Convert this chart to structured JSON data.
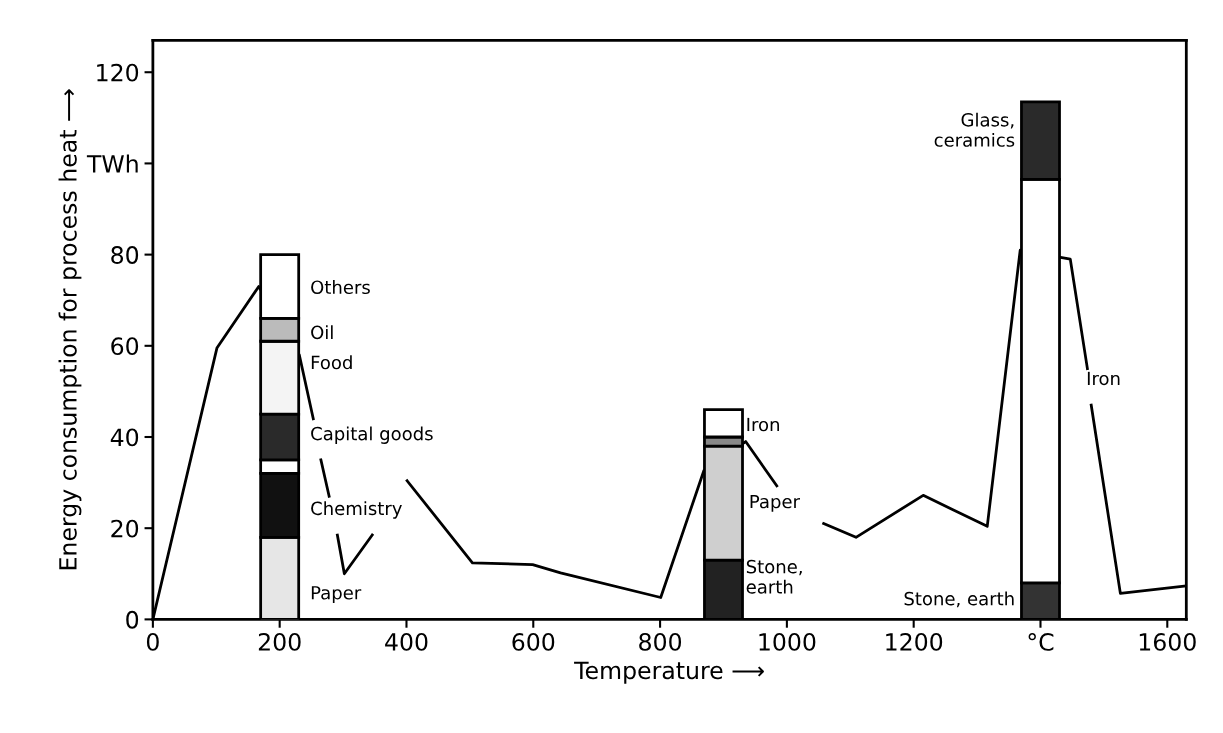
{
  "chart_data": {
    "type": "bar",
    "stacked": true,
    "xlabel": "Temperature ⟶",
    "ylabel": "Energy consumption for process heat ⟶",
    "x": [
      200,
      900,
      1400
    ],
    "series": [
      {
        "colors": [
          "#e6e6e6",
          "#222222",
          "#333333"
        ],
        "values": [
          18,
          13,
          8
        ]
      },
      {
        "colors": [
          "#111111",
          "#cfcfcf",
          "#ffffff"
        ],
        "values": [
          14,
          25,
          88.5
        ]
      },
      {
        "colors": [
          "#ffffff",
          "#888888",
          "#2a2a2a"
        ],
        "values": [
          3,
          2,
          17
        ]
      },
      {
        "colors": [
          "#2a2a2a",
          "#ffffff",
          "#ffffff"
        ],
        "values": [
          10,
          6,
          null
        ]
      },
      {
        "colors": [
          "#f4f4f4",
          "#ffffff",
          "#ffffff"
        ],
        "values": [
          16,
          null,
          null
        ]
      },
      {
        "colors": [
          "#bbbbbb",
          "#ffffff",
          "#ffffff"
        ],
        "values": [
          5,
          null,
          null
        ]
      },
      {
        "colors": [
          "#ffffff",
          "#ffffff",
          "#ffffff"
        ],
        "values": [
          14,
          null,
          null
        ]
      },
      {
        "type": "line",
        "color": "#000000",
        "x": [
          0,
          101,
          167,
          231,
          253,
          259,
          265,
          278,
          285,
          291,
          302,
          346,
          375,
          401,
          504,
          599,
          643,
          801,
          869,
          935,
          984,
          1020,
          1058,
          1109,
          1215,
          1316,
          1368,
          1447,
          1474,
          1477,
          1480,
          1526,
          1628
        ],
        "values": [
          0,
          59.5,
          73,
          58,
          44,
          null,
          35,
          27,
          null,
          18.5,
          10,
          18.5,
          null,
          30.4,
          12.4,
          12,
          10.2,
          4.8,
          32.6,
          39,
          29.3,
          null,
          21,
          18,
          27.2,
          20.4,
          81,
          79,
          55,
          null,
          47,
          5.7,
          7.3
        ]
      }
    ],
    "annotations": [
      "Others",
      "Oil",
      "Food",
      "Capital goods",
      "Chemistry",
      "Paper",
      "Iron",
      "Paper",
      "Stone,\nearth",
      "Glass,\nceramics",
      "Iron",
      "Stone, earth"
    ],
    "xlim": [
      0,
      1630
    ],
    "ylim": [
      0,
      127
    ],
    "xticks": [
      0,
      200,
      400,
      600,
      800,
      1000,
      1200,
      {
        "value": 1400,
        "label": "°C"
      },
      1600
    ],
    "yticks": [
      0,
      20,
      40,
      60,
      80,
      {
        "value": 100,
        "label": "TWh"
      },
      120
    ],
    "grid": false,
    "legend": false
  }
}
